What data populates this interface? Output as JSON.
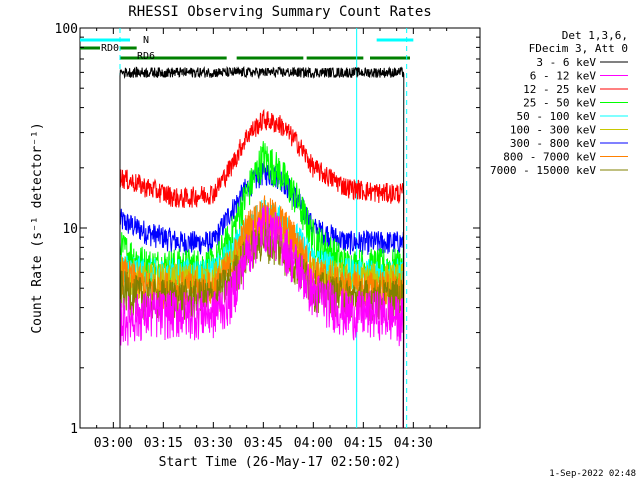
{
  "chart_data": {
    "type": "line",
    "title": "RHESSI Observing Summary Count Rates",
    "ylabel": "Count Rate (s⁻¹ detector⁻¹)",
    "xlabel": "Start Time (26-May-17 02:50:02)",
    "yscale": "log",
    "ylim": [
      1,
      100
    ],
    "xlim_minutes_after_start": [
      0,
      120
    ],
    "x_ticks": [
      {
        "label": "03:00",
        "t": 10
      },
      {
        "label": "03:15",
        "t": 25
      },
      {
        "label": "03:30",
        "t": 40
      },
      {
        "label": "03:45",
        "t": 55
      },
      {
        "label": "04:00",
        "t": 70
      },
      {
        "label": "04:15",
        "t": 85
      },
      {
        "label": "04:30",
        "t": 100
      }
    ],
    "y_ticks": [
      {
        "label": "1",
        "v": 1
      },
      {
        "label": "10",
        "v": 10
      },
      {
        "label": "100",
        "v": 100
      }
    ],
    "legend_header": [
      "Det 1,3,6,",
      "FDecim 3, Att 0"
    ],
    "legend_position": "right",
    "series": [
      {
        "name": "3 - 6 keV",
        "color": "#000000",
        "t": [
          12,
          20,
          30,
          40,
          50,
          55,
          60,
          70,
          80,
          90,
          97
        ],
        "values": [
          60,
          60,
          60,
          60,
          60,
          60,
          60,
          60,
          60,
          60,
          60
        ]
      },
      {
        "name": "6 - 12 keV",
        "color": "#ff00ff",
        "t": [
          12,
          20,
          30,
          40,
          45,
          50,
          55,
          60,
          65,
          70,
          80,
          90,
          97
        ],
        "values": [
          3.5,
          3.8,
          3.8,
          3.8,
          4.5,
          7.5,
          10.5,
          9,
          6.5,
          4.8,
          3.8,
          3.8,
          3.5
        ]
      },
      {
        "name": "12 - 25 keV",
        "color": "#ff0000",
        "t": [
          12,
          20,
          30,
          40,
          45,
          50,
          55,
          60,
          65,
          70,
          80,
          90,
          97
        ],
        "values": [
          18,
          16,
          14,
          15,
          20,
          29,
          35,
          33,
          27,
          20,
          16,
          15,
          15
        ]
      },
      {
        "name": "25 - 50 keV",
        "color": "#00ff00",
        "t": [
          12,
          20,
          30,
          40,
          45,
          50,
          55,
          60,
          65,
          70,
          80,
          90,
          97
        ],
        "values": [
          8,
          6.5,
          6.5,
          6.5,
          9,
          15,
          23,
          19,
          14,
          9,
          6.5,
          6.5,
          6.5
        ]
      },
      {
        "name": "50 - 100 keV",
        "color": "#00ffff",
        "t": [
          12,
          20,
          30,
          40,
          45,
          50,
          55,
          60,
          65,
          70,
          80,
          90,
          97
        ],
        "values": [
          6.5,
          6,
          6,
          6,
          7.5,
          10,
          12,
          11,
          9,
          7,
          6,
          6,
          6
        ]
      },
      {
        "name": "100 - 300 keV",
        "color": "#c8c800",
        "t": [
          12,
          20,
          30,
          40,
          45,
          50,
          55,
          60,
          65,
          70,
          80,
          90,
          97
        ],
        "values": [
          6,
          5.5,
          5.5,
          5.5,
          6.5,
          8.5,
          10,
          9,
          7.5,
          6,
          5.5,
          5.5,
          5.5
        ]
      },
      {
        "name": "300 - 800 keV",
        "color": "#0000ff",
        "t": [
          12,
          20,
          30,
          40,
          45,
          50,
          55,
          60,
          65,
          70,
          80,
          90,
          97
        ],
        "values": [
          11,
          9.5,
          8.5,
          8.5,
          12,
          16,
          19,
          18,
          14,
          10,
          8.5,
          8.5,
          8.5
        ]
      },
      {
        "name": "800 - 7000 keV",
        "color": "#ff8000",
        "t": [
          12,
          20,
          30,
          40,
          45,
          50,
          55,
          60,
          65,
          70,
          80,
          90,
          97
        ],
        "values": [
          6,
          5,
          5,
          5,
          6.5,
          10,
          12,
          11,
          8.5,
          6,
          5,
          5,
          5
        ]
      },
      {
        "name": "7000 - 15000 keV",
        "color": "#808000",
        "t": [
          12,
          20,
          30,
          40,
          45,
          50,
          55,
          60,
          65,
          70,
          80,
          90,
          97
        ],
        "values": [
          5,
          4.5,
          4.5,
          4.5,
          5.5,
          7.5,
          9,
          8,
          6.5,
          5,
          4.5,
          4.5,
          4.5
        ]
      }
    ],
    "annotations": [
      {
        "label": "N",
        "color": "#00ffff"
      },
      {
        "label": "RD0",
        "color": "#008000"
      },
      {
        "label": "RD6",
        "color": "#008000"
      }
    ],
    "orbit_bars": [
      {
        "color": "#00ffff",
        "spans": [
          [
            0,
            15
          ],
          [
            89,
            100
          ]
        ]
      },
      {
        "color": "#008000",
        "spans": [
          [
            0,
            6
          ],
          [
            12,
            17
          ]
        ]
      },
      {
        "color": "#008000",
        "spans": [
          [
            12,
            44
          ],
          [
            47,
            67
          ],
          [
            68,
            85
          ],
          [
            87,
            99
          ]
        ]
      }
    ],
    "vertical_lines": [
      {
        "t": 12,
        "color": "#00ffff",
        "style": "dashed"
      },
      {
        "t": 83,
        "color": "#00ffff",
        "style": "solid"
      },
      {
        "t": 98,
        "color": "#00ffff",
        "style": "dashed"
      }
    ],
    "footer_date": "1-Sep-2022 02:48"
  }
}
